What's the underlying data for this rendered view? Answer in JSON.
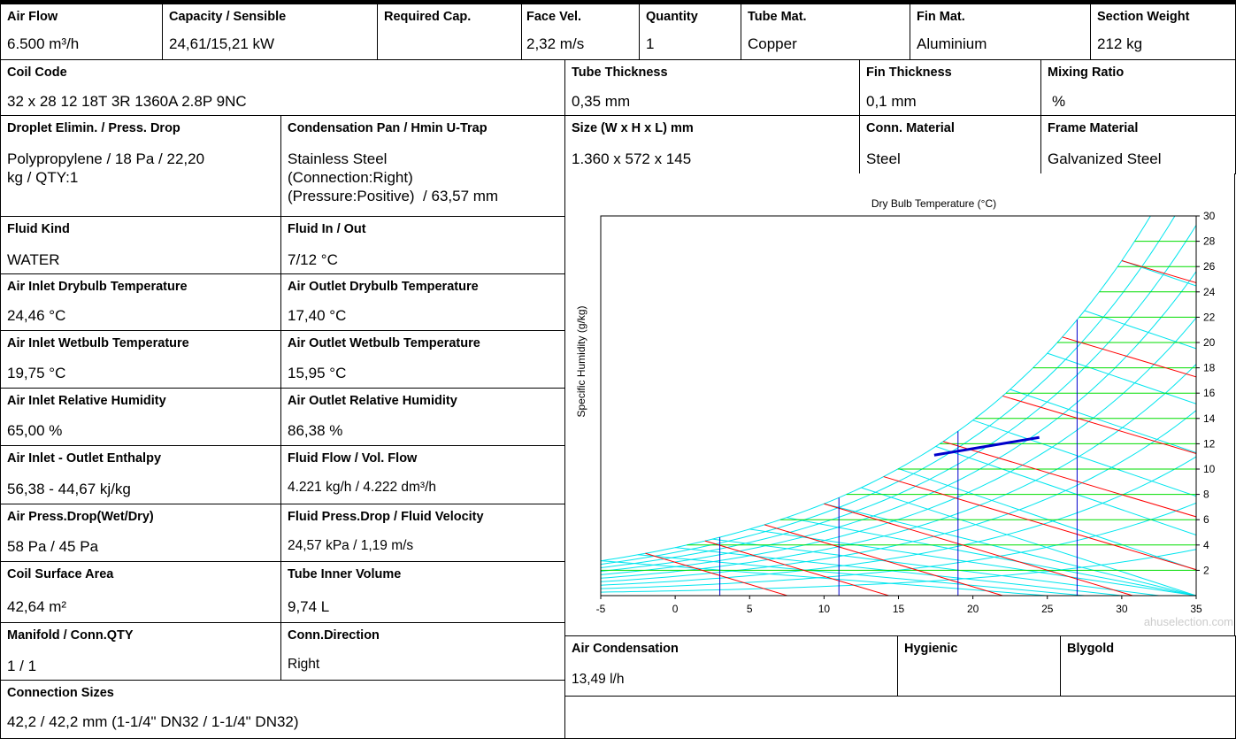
{
  "header": [
    {
      "label": "Air Flow",
      "value": "6.500 m³/h"
    },
    {
      "label": "Capacity / Sensible",
      "value": "24,61/15,21 kW"
    },
    {
      "label": "Required Cap.",
      "value": ""
    },
    {
      "label": "Face Vel.",
      "value": "2,32 m/s"
    },
    {
      "label": "Quantity",
      "value": "1"
    },
    {
      "label": "Tube Mat.",
      "value": "Copper"
    },
    {
      "label": "Fin Mat.",
      "value": "Aluminium"
    },
    {
      "label": "Section Weight",
      "value": "212 kg"
    }
  ],
  "coil": {
    "label": "Coil Code",
    "value": "32 x 28 12 18T 3R 1360A 2.8P 9NC"
  },
  "tube_thickness": {
    "label": "Tube Thickness",
    "value": "0,35 mm"
  },
  "fin_thickness": {
    "label": "Fin Thickness",
    "value": "0,1 mm"
  },
  "mixing_ratio": {
    "label": "Mixing Ratio",
    "value": "%"
  },
  "droplet": {
    "label": "Droplet Elimin. / Press. Drop",
    "value": "Polypropylene / 18 Pa / 22,20\nkg / QTY:1"
  },
  "condensation_pan": {
    "label": "Condensation Pan / Hmin U-Trap",
    "value": "Stainless Steel\n(Connection:Right)\n(Pressure:Positive)  / 63,57 mm"
  },
  "size": {
    "label": "Size (W x H x L) mm",
    "value": "1.360 x 572 x 145"
  },
  "conn_material": {
    "label": "Conn. Material",
    "value": "Steel"
  },
  "frame_material": {
    "label": "Frame Material",
    "value": "Galvanized Steel"
  },
  "rows": [
    [
      {
        "label": "Fluid Kind",
        "value": "WATER"
      },
      {
        "label": "Fluid In / Out",
        "value": "7/12 °C"
      }
    ],
    [
      {
        "label": "Air Inlet Drybulb Temperature",
        "value": "24,46 °C"
      },
      {
        "label": "Air Outlet Drybulb Temperature",
        "value": "17,40 °C"
      }
    ],
    [
      {
        "label": "Air Inlet Wetbulb Temperature",
        "value": "19,75 °C"
      },
      {
        "label": "Air Outlet Wetbulb Temperature",
        "value": "15,95 °C"
      }
    ],
    [
      {
        "label": "Air Inlet Relative Humidity",
        "value": "65,00 %"
      },
      {
        "label": "Air Outlet Relative Humidity",
        "value": "86,38 %"
      }
    ],
    [
      {
        "label": "Air Inlet - Outlet Enthalpy",
        "value": "56,38 - 44,67 kj/kg"
      },
      {
        "label": "Fluid Flow / Vol. Flow",
        "value": "4.221 kg/h / 4.222 dm³/h"
      }
    ],
    [
      {
        "label": "Air Press.Drop(Wet/Dry)",
        "value": "58 Pa / 45 Pa"
      },
      {
        "label": "Fluid Press.Drop / Fluid Velocity",
        "value": "24,57 kPa / 1,19 m/s"
      }
    ],
    [
      {
        "label": "Coil Surface Area",
        "value": "42,64 m²"
      },
      {
        "label": "Tube Inner Volume",
        "value": "9,74 L"
      }
    ],
    [
      {
        "label": "Manifold / Conn.QTY",
        "value": "1 / 1"
      },
      {
        "label": "Conn.Direction",
        "value": "Right"
      }
    ]
  ],
  "connection_sizes": {
    "label": "Connection Sizes",
    "value": "42,2 / 42,2 mm (1-1/4\" DN32 / 1-1/4\" DN32)"
  },
  "air_condensation": {
    "label": "Air Condensation",
    "value": "13,49 l/h"
  },
  "hygienic": {
    "label": "Hygienic",
    "value": ""
  },
  "blygold": {
    "label": "Blygold",
    "value": ""
  },
  "chart_data": {
    "type": "line",
    "title": "Dry Bulb Temperature (°C)",
    "xlabel": "",
    "ylabel": "Specific Humidity (g/kg)",
    "xlim": [
      -5,
      35
    ],
    "ylim": [
      0,
      30
    ],
    "xticks": [
      -5,
      0,
      5,
      10,
      15,
      20,
      25,
      30,
      35
    ],
    "yticks": [
      2,
      4,
      6,
      8,
      10,
      12,
      14,
      16,
      18,
      20,
      22,
      24,
      26,
      28,
      30
    ],
    "watermark": "ahuselection.com",
    "colors": {
      "rh": "#00e5ee",
      "humidity": "#00dd00",
      "enthalpy": "#ff0000",
      "temp": "#0000cc",
      "process": "#0000cc"
    },
    "process_line": {
      "x": [
        17.4,
        24.46
      ],
      "y": [
        11.1,
        12.5
      ]
    }
  }
}
